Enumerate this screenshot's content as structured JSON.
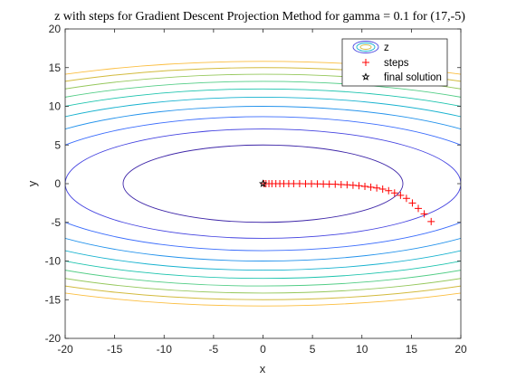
{
  "chart_data": {
    "type": "contour",
    "title": "z with steps for Gradient Descent Projection Method for gamma = 0.1 for (17,-5)",
    "xlabel": "x",
    "ylabel": "y",
    "xlim": [
      -20,
      20
    ],
    "ylim": [
      -20,
      20
    ],
    "xticks": [
      "-20",
      "-15",
      "-10",
      "-5",
      "0",
      "5",
      "10",
      "15",
      "20"
    ],
    "yticks": [
      "20",
      "15",
      "10",
      "5",
      "0",
      "-5",
      "-10",
      "-15",
      "-20"
    ],
    "grid": false,
    "legend_position": "top-right",
    "contours": {
      "name": "z",
      "function": "x^2 + 8*y^2",
      "levels": [
        200,
        400,
        600,
        800,
        1000,
        1200,
        1400,
        1600,
        1800,
        2000
      ],
      "colors": [
        "#3e26a8",
        "#4443e0",
        "#3a6cfc",
        "#2493ec",
        "#17b2cf",
        "#1bc3ad",
        "#52cd86",
        "#94c75a",
        "#d2ba3c",
        "#fbbd3e"
      ]
    },
    "series": [
      {
        "name": "steps",
        "marker": "+",
        "color": "#ff0000",
        "x": [
          17.0,
          16.3,
          15.7,
          15.1,
          14.5,
          13.9,
          13.3,
          12.7,
          12.1,
          11.5,
          10.9,
          10.3,
          9.7,
          9.1,
          8.5,
          7.9,
          7.3,
          6.7,
          6.1,
          5.5,
          4.9,
          4.3,
          3.7,
          3.1,
          2.6,
          2.1,
          1.7,
          1.3,
          0.9,
          0.6,
          0.3,
          0.1
        ],
        "y": [
          -4.9,
          -3.9,
          -3.2,
          -2.5,
          -1.9,
          -1.5,
          -1.2,
          -0.9,
          -0.7,
          -0.55,
          -0.45,
          -0.35,
          -0.27,
          -0.2,
          -0.15,
          -0.11,
          -0.08,
          -0.06,
          -0.04,
          -0.03,
          -0.02,
          -0.01,
          0.0,
          0.0,
          0.0,
          0.0,
          0.0,
          0.0,
          0.0,
          0.0,
          0.0,
          0.0
        ]
      },
      {
        "name": "final solution",
        "marker": "pentagram",
        "color": "#000000",
        "x": [
          0.0
        ],
        "y": [
          0.0
        ]
      }
    ]
  }
}
